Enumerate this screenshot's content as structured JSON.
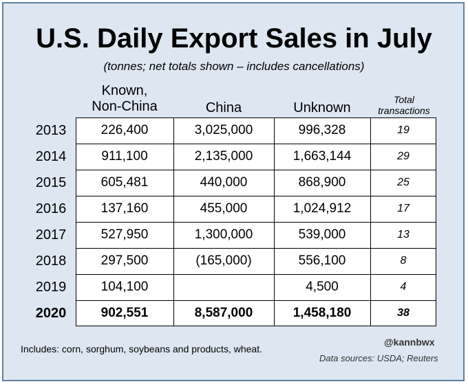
{
  "header": {
    "title": "U.S. Daily Export Sales in July",
    "subtitle": "(tonnes; net totals shown – includes cancellations)"
  },
  "columns": {
    "known_line1": "Known,",
    "known_line2": "Non-China",
    "china": "China",
    "unknown": "Unknown",
    "total_line1": "Total",
    "total_line2": "transactions"
  },
  "rows": [
    {
      "year": "2013",
      "known": "226,400",
      "china": "3,025,000",
      "unknown": "996,328",
      "total": "19"
    },
    {
      "year": "2014",
      "known": "911,100",
      "china": "2,135,000",
      "unknown": "1,663,144",
      "total": "29"
    },
    {
      "year": "2015",
      "known": "605,481",
      "china": "440,000",
      "unknown": "868,900",
      "total": "25"
    },
    {
      "year": "2016",
      "known": "137,160",
      "china": "455,000",
      "unknown": "1,024,912",
      "total": "17"
    },
    {
      "year": "2017",
      "known": "527,950",
      "china": "1,300,000",
      "unknown": "539,000",
      "total": "13"
    },
    {
      "year": "2018",
      "known": "297,500",
      "china": "(165,000)",
      "unknown": "556,100",
      "total": "8"
    },
    {
      "year": "2019",
      "known": "104,100",
      "china": "",
      "unknown": "4,500",
      "total": "4"
    },
    {
      "year": "2020",
      "known": "902,551",
      "china": "8,587,000",
      "unknown": "1,458,180",
      "total": "38"
    }
  ],
  "footer": {
    "note": "Includes: corn, sorghum, soybeans and products, wheat.",
    "handle": "@kannbwx",
    "sources": "Data sources: USDA; Reuters"
  },
  "colors": {
    "background": "#dde6f1",
    "border": "#5f7f9f",
    "table_background": "#ffffff"
  },
  "chart_data": {
    "type": "table",
    "title": "U.S. Daily Export Sales in July",
    "subtitle": "(tonnes; net totals shown – includes cancellations)",
    "columns": [
      "Known, Non-China",
      "China",
      "Unknown",
      "Total transactions"
    ],
    "rows": [
      {
        "year": "2013",
        "values": [
          226400,
          3025000,
          996328,
          19
        ]
      },
      {
        "year": "2014",
        "values": [
          911100,
          2135000,
          1663144,
          29
        ]
      },
      {
        "year": "2015",
        "values": [
          605481,
          440000,
          868900,
          25
        ]
      },
      {
        "year": "2016",
        "values": [
          137160,
          455000,
          1024912,
          17
        ]
      },
      {
        "year": "2017",
        "values": [
          527950,
          1300000,
          539000,
          13
        ]
      },
      {
        "year": "2018",
        "values": [
          297500,
          -165000,
          556100,
          8
        ]
      },
      {
        "year": "2019",
        "values": [
          104100,
          null,
          4500,
          4
        ]
      },
      {
        "year": "2020",
        "values": [
          902551,
          8587000,
          1458180,
          38
        ]
      }
    ]
  }
}
